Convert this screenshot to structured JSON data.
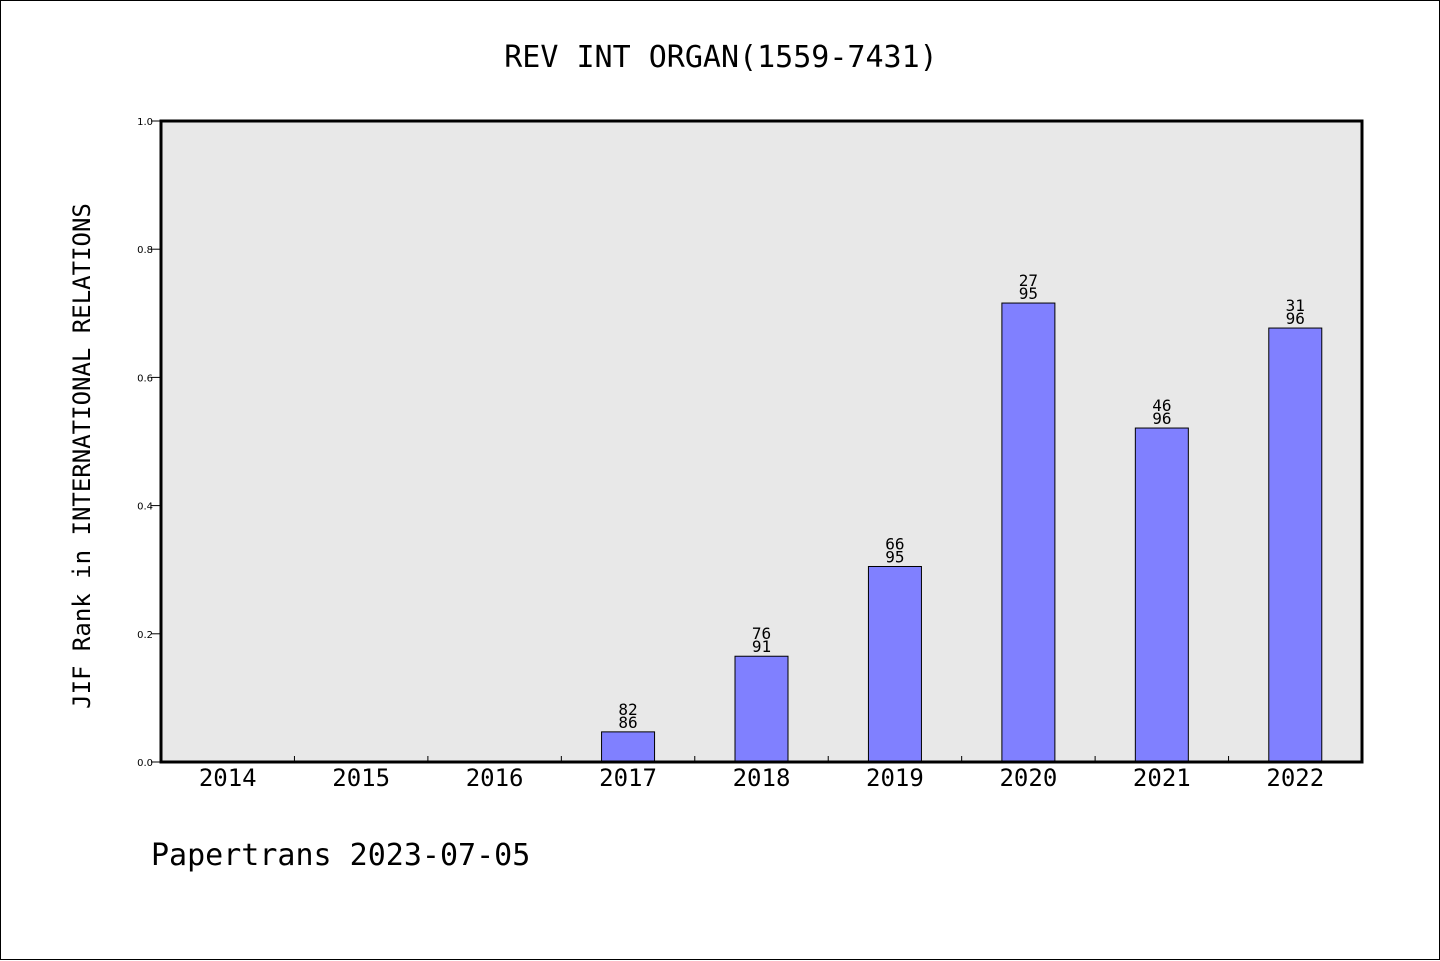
{
  "chart_data": {
    "type": "bar",
    "title": "REV INT ORGAN(1559-7431)",
    "xlabel": "",
    "ylabel": "JIF Rank in INTERNATIONAL RELATIONS",
    "ylim": [
      0,
      1.0
    ],
    "yticks": [
      "0.0",
      "0.2",
      "0.4",
      "0.6",
      "0.8",
      "1.0"
    ],
    "categories": [
      "2014",
      "2015",
      "2016",
      "2017",
      "2018",
      "2019",
      "2020",
      "2021",
      "2022"
    ],
    "values": [
      null,
      null,
      null,
      0.047,
      0.165,
      0.305,
      0.716,
      0.521,
      0.677
    ],
    "data_labels": [
      null,
      null,
      null,
      {
        "top": "82",
        "bottom": "86"
      },
      {
        "top": "76",
        "bottom": "91"
      },
      {
        "top": "66",
        "bottom": "95"
      },
      {
        "top": "27",
        "bottom": "95"
      },
      {
        "top": "46",
        "bottom": "96"
      },
      {
        "top": "31",
        "bottom": "96"
      }
    ],
    "grid": false,
    "legend": "none",
    "colors": {
      "bar": "#8080ff",
      "plot_bg": "#e8e8e8",
      "axis": "#000000"
    }
  },
  "footer": "Papertrans 2023-07-05"
}
